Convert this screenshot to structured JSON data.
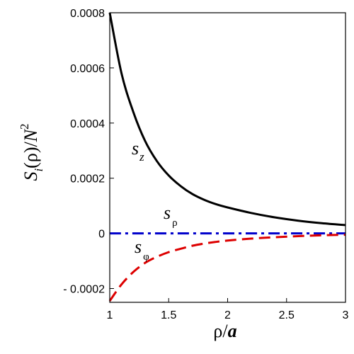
{
  "chart_data": {
    "type": "line",
    "title": "",
    "xlabel": {
      "main": "ρ/",
      "italic": "a"
    },
    "ylabel": {
      "S": "S",
      "sub": "i",
      "rest": "(ρ)/",
      "N": "N",
      "sup": "2"
    },
    "xlim": [
      1,
      3
    ],
    "ylim": [
      -0.00025,
      0.0008
    ],
    "xticks": [
      1,
      1.5,
      2,
      2.5,
      3
    ],
    "xtick_labels": [
      "1",
      "1.5",
      "2",
      "2.5",
      "3"
    ],
    "yticks": [
      -0.0002,
      0,
      0.0002,
      0.0004,
      0.0006,
      0.0008
    ],
    "ytick_labels": [
      "- 0.0002",
      "0",
      "0.0002",
      "0.0004",
      "0.0006",
      "0.0008"
    ],
    "grid": false,
    "legend": "none",
    "series": [
      {
        "name": "s_z",
        "label_main": "s",
        "label_sub": "z",
        "color": "#000000",
        "style": "solid",
        "x": [
          1,
          1.1,
          1.2,
          1.3,
          1.4,
          1.5,
          1.6,
          1.7,
          1.8,
          1.9,
          2,
          2.2,
          2.4,
          2.6,
          2.8,
          3
        ],
        "y": [
          0.0008,
          0.00058,
          0.00044,
          0.000335,
          0.000262,
          0.00021,
          0.000172,
          0.000143,
          0.000122,
          0.000106,
          9.4e-05,
          7.4e-05,
          5.8e-05,
          4.6e-05,
          3.7e-05,
          3e-05
        ]
      },
      {
        "name": "s_ρ",
        "label_main": "s",
        "label_sub": "ρ",
        "color": "#0000cc",
        "style": "dashdot",
        "x": [
          1,
          3
        ],
        "y": [
          0,
          0
        ]
      },
      {
        "name": "s_φ",
        "label_main": "s",
        "label_sub": "φ",
        "color": "#dd0000",
        "style": "dashed",
        "x": [
          1,
          1.1,
          1.2,
          1.3,
          1.4,
          1.5,
          1.6,
          1.7,
          1.8,
          1.9,
          2,
          2.2,
          2.4,
          2.6,
          2.8,
          3
        ],
        "y": [
          -0.000245,
          -0.000185,
          -0.00014,
          -0.000107,
          -8.5e-05,
          -6.8e-05,
          -5.6e-05,
          -4.5e-05,
          -3.7e-05,
          -3.1e-05,
          -2.6e-05,
          -1.9e-05,
          -1.4e-05,
          -1e-05,
          -7e-06,
          -5e-06
        ]
      }
    ]
  }
}
